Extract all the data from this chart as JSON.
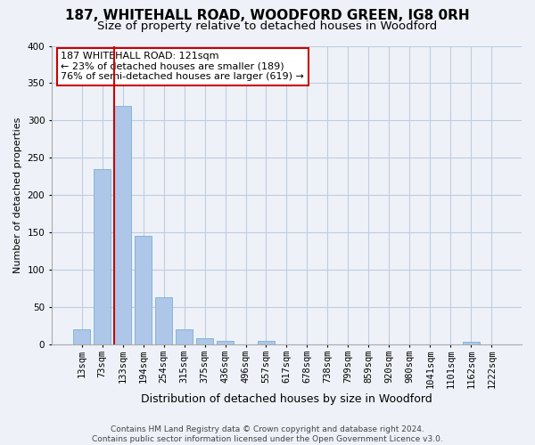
{
  "title1": "187, WHITEHALL ROAD, WOODFORD GREEN, IG8 0RH",
  "title2": "Size of property relative to detached houses in Woodford",
  "xlabel": "Distribution of detached houses by size in Woodford",
  "ylabel": "Number of detached properties",
  "categories": [
    "13sqm",
    "73sqm",
    "133sqm",
    "194sqm",
    "254sqm",
    "315sqm",
    "375sqm",
    "436sqm",
    "496sqm",
    "557sqm",
    "617sqm",
    "678sqm",
    "738sqm",
    "799sqm",
    "859sqm",
    "920sqm",
    "980sqm",
    "1041sqm",
    "1101sqm",
    "1162sqm",
    "1222sqm"
  ],
  "values": [
    20,
    235,
    320,
    145,
    63,
    20,
    8,
    5,
    0,
    5,
    0,
    0,
    0,
    0,
    0,
    0,
    0,
    0,
    0,
    4,
    0
  ],
  "bar_color": "#aec6e8",
  "bar_edge_color": "#7aafd4",
  "grid_color": "#c0cce0",
  "bg_color": "#eef2f8",
  "vline_color": "#cc0000",
  "annotation_text": "187 WHITEHALL ROAD: 121sqm\n← 23% of detached houses are smaller (189)\n76% of semi-detached houses are larger (619) →",
  "annotation_box_color": "#ffffff",
  "annotation_border_color": "#cc0000",
  "ylim": [
    0,
    400
  ],
  "yticks": [
    0,
    50,
    100,
    150,
    200,
    250,
    300,
    350,
    400
  ],
  "footnote": "Contains HM Land Registry data © Crown copyright and database right 2024.\nContains public sector information licensed under the Open Government Licence v3.0.",
  "title1_fontsize": 11,
  "title2_fontsize": 9.5,
  "xlabel_fontsize": 9,
  "ylabel_fontsize": 8,
  "tick_fontsize": 7.5,
  "annotation_fontsize": 8,
  "footnote_fontsize": 6.5
}
